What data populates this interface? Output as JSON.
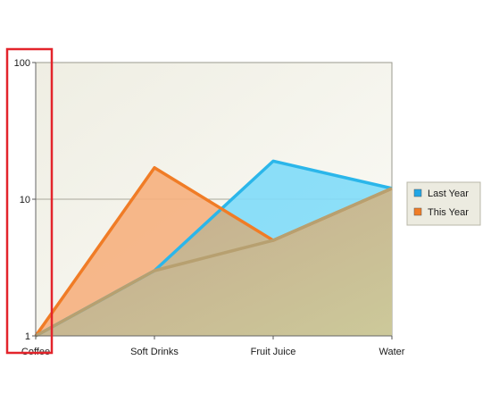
{
  "chart_data": {
    "type": "area",
    "categories": [
      "Coffee",
      "Soft Drinks",
      "Fruit Juice",
      "Water"
    ],
    "y_scale": "log",
    "ylim": [
      1,
      100
    ],
    "y_ticks": [
      {
        "value": 100,
        "label": "100"
      },
      {
        "value": 10,
        "label": "10"
      },
      {
        "value": 1,
        "label": "1"
      }
    ],
    "grid": true,
    "legend_position": "right",
    "series": [
      {
        "name": "Last Year",
        "values": [
          1,
          3,
          19,
          12
        ],
        "fill": "#7fdcf8",
        "stroke": "#2bb6ea",
        "swatch": "#21a6e6"
      },
      {
        "name": "This Year",
        "values": [
          1,
          17,
          5,
          12
        ],
        "fill": "#f6b07e",
        "stroke": "#f07c26",
        "swatch": "#f07c26"
      }
    ],
    "overlap_fill": "#c9b28f",
    "overlap_stroke": "#b7a070",
    "highlight_color": "#e3242b"
  }
}
